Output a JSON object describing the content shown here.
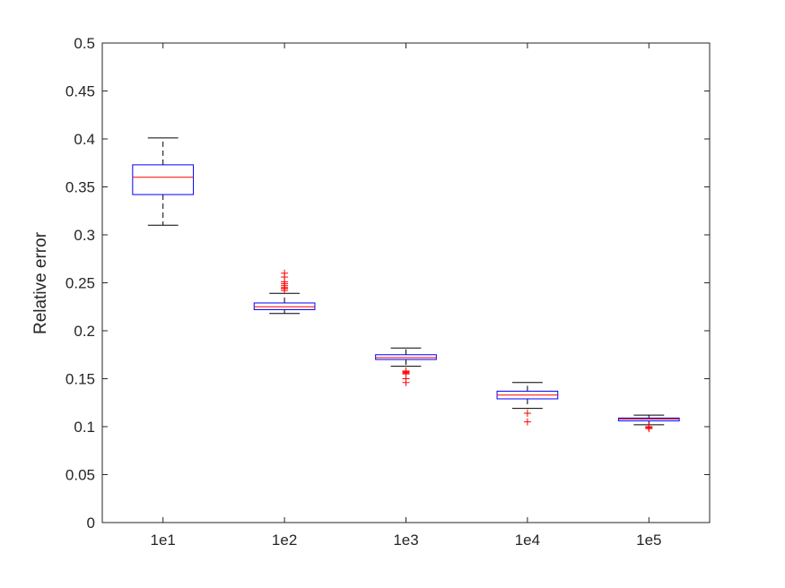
{
  "chart_data": {
    "type": "box",
    "title": "",
    "xlabel": "",
    "ylabel": "Relative error",
    "categories": [
      "1e1",
      "1e2",
      "1e3",
      "1e4",
      "1e5"
    ],
    "ylim": [
      0,
      0.5
    ],
    "yticks": [
      0,
      0.05,
      0.1,
      0.15,
      0.2,
      0.25,
      0.3,
      0.35,
      0.4,
      0.45,
      0.5
    ],
    "ytick_labels": [
      "0",
      "0.05",
      "0.1",
      "0.15",
      "0.2",
      "0.25",
      "0.3",
      "0.35",
      "0.4",
      "0.45",
      "0.5"
    ],
    "grid": false,
    "boxes": [
      {
        "category": "1e1",
        "whisker_low": 0.31,
        "q1": 0.342,
        "median": 0.36,
        "q3": 0.373,
        "whisker_high": 0.401,
        "outliers": []
      },
      {
        "category": "1e2",
        "whisker_low": 0.218,
        "q1": 0.222,
        "median": 0.225,
        "q3": 0.229,
        "whisker_high": 0.239,
        "outliers": [
          0.242,
          0.244,
          0.245,
          0.247,
          0.249,
          0.251,
          0.256,
          0.26
        ]
      },
      {
        "category": "1e3",
        "whisker_low": 0.163,
        "q1": 0.17,
        "median": 0.172,
        "q3": 0.175,
        "whisker_high": 0.182,
        "outliers": [
          0.158,
          0.157,
          0.156,
          0.155,
          0.15,
          0.146
        ]
      },
      {
        "category": "1e4",
        "whisker_low": 0.119,
        "q1": 0.129,
        "median": 0.133,
        "q3": 0.137,
        "whisker_high": 0.146,
        "outliers": [
          0.114,
          0.105
        ]
      },
      {
        "category": "1e5",
        "whisker_low": 0.102,
        "q1": 0.106,
        "median": 0.108,
        "q3": 0.109,
        "whisker_high": 0.112,
        "outliers": [
          0.1,
          0.099,
          0.098
        ]
      }
    ],
    "colors": {
      "box": "#0000ff",
      "median": "#ff0000",
      "whisker": "#000000",
      "outlier": "#ff0000",
      "axis": "#262626"
    }
  }
}
